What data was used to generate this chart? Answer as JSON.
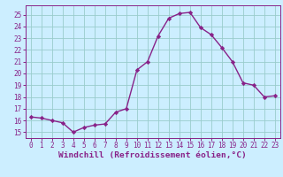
{
  "x": [
    0,
    1,
    2,
    3,
    4,
    5,
    6,
    7,
    8,
    9,
    10,
    11,
    12,
    13,
    14,
    15,
    16,
    17,
    18,
    19,
    20,
    21,
    22,
    23
  ],
  "y": [
    16.3,
    16.2,
    16.0,
    15.8,
    15.0,
    15.4,
    15.6,
    15.7,
    16.7,
    17.0,
    20.3,
    21.0,
    23.2,
    24.7,
    25.1,
    25.2,
    23.9,
    23.3,
    22.2,
    21.0,
    19.2,
    19.0,
    18.0,
    18.1
  ],
  "line_color": "#882288",
  "marker": "D",
  "markersize": 2.2,
  "linewidth": 1.0,
  "bg_color": "#cceeff",
  "grid_color": "#99cccc",
  "xlabel": "Windchill (Refroidissement éolien,°C)",
  "xlabel_color": "#882288",
  "tick_color": "#882288",
  "ylim": [
    14.5,
    25.8
  ],
  "yticks": [
    15,
    16,
    17,
    18,
    19,
    20,
    21,
    22,
    23,
    24,
    25
  ],
  "xlim": [
    -0.5,
    23.5
  ],
  "xticks": [
    0,
    1,
    2,
    3,
    4,
    5,
    6,
    7,
    8,
    9,
    10,
    11,
    12,
    13,
    14,
    15,
    16,
    17,
    18,
    19,
    20,
    21,
    22,
    23
  ],
  "fontsize_ticks": 5.5,
  "fontsize_xlabel": 6.8
}
